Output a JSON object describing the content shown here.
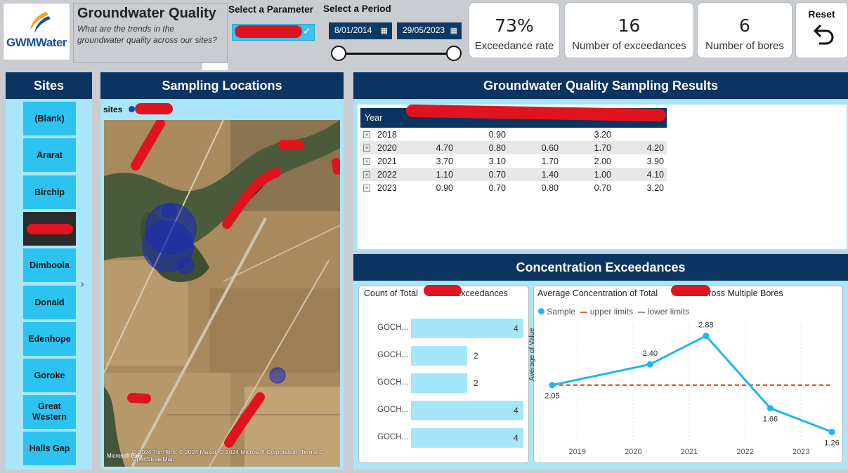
{
  "header": {
    "logo_text": "GWMWater",
    "title": "Groundwater Quality",
    "subtitle": "What are the trends in the groundwater quality across our sites?",
    "param_label": "Select a Parameter",
    "period_label": "Select a Period",
    "date_start": "8/01/2014",
    "date_end": "29/05/2023"
  },
  "kpis": [
    {
      "value": "73%",
      "caption": "Exceedance rate"
    },
    {
      "value": "16",
      "caption": "Number of exceedances"
    },
    {
      "value": "6",
      "caption": "Number of bores"
    }
  ],
  "reset_label": "Reset",
  "sites": {
    "title": "Sites",
    "items": [
      "(Blank)",
      "Ararat",
      "Birchip",
      "",
      "Dimboola",
      "Donald",
      "Edenhope",
      "Goroke",
      "Great Western",
      "Halls Gap"
    ]
  },
  "map": {
    "title": "Sampling Locations",
    "legend_label": "sites",
    "attribution": "© 2024 TomTom, © 2024 Maxar, © 2024 Microsoft Corporation, Terms © OpenStreetMap",
    "bing": "Microsoft Bing"
  },
  "results": {
    "title": "Groundwater Quality Sampling Results",
    "year_header": "Year",
    "rows": [
      {
        "year": "2018",
        "c1": "",
        "c2": "0.90",
        "c3": "",
        "c4": "3.20",
        "c5": ""
      },
      {
        "year": "2020",
        "c1": "4.70",
        "c2": "0.80",
        "c3": "0.60",
        "c4": "1.70",
        "c5": "4.20"
      },
      {
        "year": "2021",
        "c1": "3.70",
        "c2": "3.10",
        "c3": "1.70",
        "c4": "2.00",
        "c5": "3.90"
      },
      {
        "year": "2022",
        "c1": "1.10",
        "c2": "0.70",
        "c3": "1.40",
        "c4": "1.00",
        "c5": "4.10"
      },
      {
        "year": "2023",
        "c1": "0.90",
        "c2": "0.70",
        "c3": "0.80",
        "c4": "0.70",
        "c5": "3.20"
      }
    ]
  },
  "exceedances": {
    "title": "Concentration Exceedances",
    "bar_title_a": "Count of Total",
    "bar_title_b": "Exceedances",
    "line_title_a": "Average Concentration of Total",
    "line_title_b": "across Multiple Bores",
    "legend": {
      "sample": "Sample",
      "upper": "upper limits",
      "lower": "lower limits"
    },
    "ylabel": "Average of Value"
  },
  "chart_data": [
    {
      "type": "bar",
      "orientation": "horizontal",
      "categories": [
        "GOCH...",
        "GOCH...",
        "GOCH...",
        "GOCH...",
        "GOCH..."
      ],
      "values": [
        4,
        2,
        2,
        4,
        4
      ],
      "xlim": [
        0,
        4
      ]
    },
    {
      "type": "line",
      "x": [
        2018.55,
        2020.3,
        2021.3,
        2022.45,
        2023.55
      ],
      "series": [
        {
          "name": "Sample",
          "values": [
            2.05,
            2.4,
            2.88,
            1.66,
            1.26
          ],
          "labels": [
            "2.05",
            "2.40",
            "2.88",
            "1.66",
            "1.26"
          ],
          "color": "#1fb6ec"
        },
        {
          "name": "upper limits",
          "values": [
            2.05,
            2.05
          ],
          "x": [
            2018.55,
            2023.55
          ],
          "color": "#e8642c"
        }
      ],
      "xticks": [
        "2019",
        "2020",
        "2021",
        "2022",
        "2023"
      ],
      "xlim": [
        2018.4,
        2023.6
      ],
      "ylim": [
        1.1,
        3.1
      ],
      "legend": "top-left"
    }
  ],
  "colors": {
    "navy": "#0c3460",
    "accent": "#2cc3f1",
    "panel": "#a9e6fa",
    "redaction": "#e0141e"
  }
}
